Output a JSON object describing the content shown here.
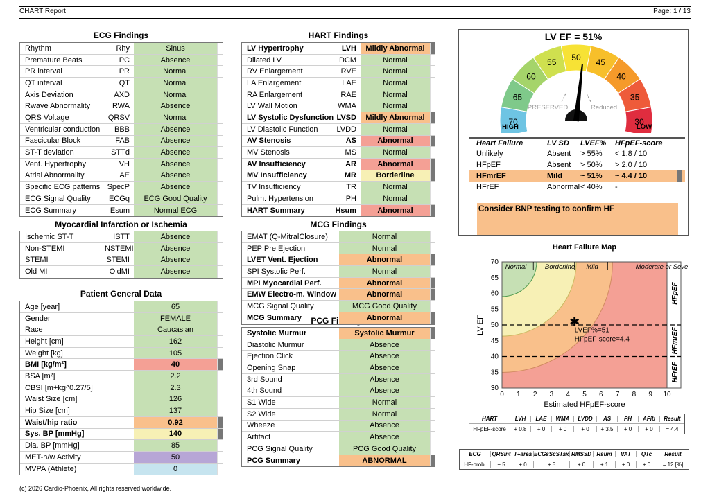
{
  "header": {
    "title": "CHART Report",
    "page": "Page: 1 / 13"
  },
  "footer": "(c) 2026 Cardio-Phoenix, All rights reserved worldwide.",
  "colors": {
    "green": "#c6e0b4",
    "orange": "#f9c08b",
    "red": "#f4a095",
    "yellow": "#f7f0b5",
    "purple": "#b7a6d6",
    "cyan": "#c6e4ef"
  },
  "ecg": {
    "title": "ECG Findings",
    "rows": [
      [
        "Rhythm",
        "Rhy",
        "Sinus",
        "g",
        0,
        0
      ],
      [
        "Premature Beats",
        "PC",
        "Absence",
        "g",
        0,
        0
      ],
      [
        "PR interval",
        "PR",
        "Normal",
        "g",
        0,
        0
      ],
      [
        "QT interval",
        "QT",
        "Normal",
        "g",
        0,
        0
      ],
      [
        "Axis Deviation",
        "AXD",
        "Normal",
        "g",
        0,
        0
      ],
      [
        "Rwave Abnormality",
        "RWA",
        "Absence",
        "g",
        0,
        0
      ],
      [
        "QRS Voltage",
        "QRSV",
        "Normal",
        "g",
        0,
        0
      ],
      [
        "Ventricular conduction",
        "BBB",
        "Absence",
        "g",
        0,
        0
      ],
      [
        "Fascicular Block",
        "FAB",
        "Absence",
        "g",
        0,
        0
      ],
      [
        "ST-T deviation",
        "STTd",
        "Absence",
        "g",
        0,
        0
      ],
      [
        "Vent. Hypertrophy",
        "VH",
        "Absence",
        "g",
        0,
        0
      ],
      [
        "Atrial Abnormality",
        "AE",
        "Absence",
        "g",
        0,
        0
      ],
      [
        "Specific ECG patterns",
        "SpecP",
        "Absence",
        "g",
        0,
        0
      ],
      [
        "ECG Signal Quality",
        "ECGq",
        "ECG Good Quality",
        "g",
        0,
        0
      ],
      [
        "ECG Summary",
        "Esum",
        "Normal ECG",
        "g",
        0,
        0
      ]
    ]
  },
  "mi": {
    "title": "Myocardial Infarction or Ischemia",
    "rows": [
      [
        "Ischemic ST-T",
        "ISTT",
        "Absence",
        "g",
        0,
        0
      ],
      [
        "Non-STEMI",
        "NSTEMI",
        "Absence",
        "g",
        0,
        0
      ],
      [
        "STEMI",
        "STEMI",
        "Absence",
        "g",
        0,
        0
      ],
      [
        "Old MI",
        "OldMI",
        "Absence",
        "g",
        0,
        0
      ]
    ]
  },
  "patient": {
    "title": "Patient General Data",
    "rows": [
      [
        "Age [year]",
        "",
        "65",
        "g",
        0,
        0
      ],
      [
        "Gender",
        "",
        "FEMALE",
        "g",
        0,
        0
      ],
      [
        "Race",
        "",
        "Caucasian",
        "g",
        0,
        0
      ],
      [
        "Height [cm]",
        "",
        "162",
        "g",
        0,
        0
      ],
      [
        "Weight [kg]",
        "",
        "105",
        "g",
        0,
        0
      ],
      [
        "BMI [kg/m²]",
        "",
        "40",
        "r",
        1,
        1
      ],
      [
        "BSA [m²]",
        "",
        "2.2",
        "g",
        0,
        0
      ],
      [
        "CBSI [m+kg^0.27/5]",
        "",
        "2.3",
        "g",
        0,
        0
      ],
      [
        "Waist Size [cm]",
        "",
        "126",
        "g",
        0,
        0
      ],
      [
        "Hip Size [cm]",
        "",
        "137",
        "g",
        0,
        0
      ],
      [
        "Waist/hip ratio",
        "",
        "0.92",
        "o",
        1,
        1
      ],
      [
        "Sys. BP [mmHg]",
        "",
        "140",
        "y",
        1,
        1
      ],
      [
        "Dia. BP [mmHg]",
        "",
        "85",
        "g",
        0,
        0
      ],
      [
        "MET-h/w Activity",
        "",
        "50",
        "p",
        0,
        0
      ],
      [
        "MVPA (Athlete)",
        "",
        "0",
        "c",
        0,
        0
      ]
    ]
  },
  "hart": {
    "title": "HART Findings",
    "rows": [
      [
        "LV Hypertrophy",
        "LVH",
        "Mildly Abnormal",
        "o",
        1,
        1
      ],
      [
        "Dilated LV",
        "DCM",
        "Normal",
        "g",
        0,
        0
      ],
      [
        "RV Enlargement",
        "RVE",
        "Normal",
        "g",
        0,
        0
      ],
      [
        "LA Enlargement",
        "LAE",
        "Normal",
        "g",
        0,
        0
      ],
      [
        "RA Enlargement",
        "RAE",
        "Normal",
        "g",
        0,
        0
      ],
      [
        "LV Wall Motion",
        "WMA",
        "Normal",
        "g",
        0,
        0
      ],
      [
        "LV Systolic Dysfunction",
        "LVSD",
        "Mildly Abnormal",
        "o",
        1,
        1
      ],
      [
        "LV Diastolic Function",
        "LVDD",
        "Normal",
        "g",
        0,
        0
      ],
      [
        "AV Stenosis",
        "AS",
        "Abnormal",
        "r",
        1,
        1
      ],
      [
        "MV Stenosis",
        "MS",
        "Normal",
        "g",
        0,
        0
      ],
      [
        "AV Insufficiency",
        "AR",
        "Abnormal",
        "r",
        1,
        1
      ],
      [
        "MV Insufficiency",
        "MR",
        "Borderline",
        "y",
        1,
        1
      ],
      [
        "TV Insufficiency",
        "TR",
        "Normal",
        "g",
        0,
        0
      ],
      [
        "Pulm. Hypertension",
        "PH",
        "Normal",
        "g",
        0,
        0
      ],
      [
        "HART Summary",
        "Hsum",
        "Abnormal",
        "r",
        1,
        1
      ]
    ]
  },
  "mcg": {
    "title": "MCG Findings",
    "rows": [
      [
        "EMAT (Q-MitralClosure)",
        "",
        "Normal",
        "g",
        0,
        0
      ],
      [
        "PEP Pre Ejection",
        "",
        "Normal",
        "g",
        0,
        0
      ],
      [
        "LVET Vent. Ejection",
        "",
        "Abnormal",
        "o",
        1,
        1
      ],
      [
        "SPI Systolic Perf.",
        "",
        "Normal",
        "g",
        0,
        0
      ],
      [
        "MPI Myocardial Perf.",
        "",
        "Abnormal",
        "o",
        1,
        1
      ],
      [
        "EMW Electro-m. Window",
        "",
        "Abnormal",
        "o",
        1,
        1
      ],
      [
        "MCG Signal Quality",
        "",
        "MCG Good Quality",
        "g",
        0,
        0
      ],
      [
        "MCG Summary",
        "",
        "Abnormal",
        "o",
        1,
        1
      ]
    ]
  },
  "pcg": {
    "title": "PCG Findings",
    "rows": [
      [
        "Systolic Murmur",
        "",
        "Systolic Murmur",
        "o",
        1,
        1
      ],
      [
        "Diastolic Murmur",
        "",
        "Absence",
        "g",
        0,
        0
      ],
      [
        "Ejection Click",
        "",
        "Absence",
        "g",
        0,
        0
      ],
      [
        "Opening Snap",
        "",
        "Absence",
        "g",
        0,
        0
      ],
      [
        "3rd Sound",
        "",
        "Absence",
        "g",
        0,
        0
      ],
      [
        "4th Sound",
        "",
        "Absence",
        "g",
        0,
        0
      ],
      [
        "S1 Wide",
        "",
        "Normal",
        "g",
        0,
        0
      ],
      [
        "S2 Wide",
        "",
        "Normal",
        "g",
        0,
        0
      ],
      [
        "Wheeze",
        "",
        "Absence",
        "g",
        0,
        0
      ],
      [
        "Artifact",
        "",
        "Absence",
        "g",
        0,
        0
      ],
      [
        "PCG Signal Quality",
        "",
        "PCG Good Quality",
        "g",
        0,
        0
      ],
      [
        "PCG Summary",
        "",
        "ABNORMAL",
        "o",
        1,
        1
      ]
    ]
  },
  "gauge": {
    "title": "LV EF = 51%",
    "value": 51,
    "ticks": [
      "70",
      "65",
      "60",
      "55",
      "50",
      "45",
      "40",
      "35",
      "30"
    ],
    "preserved": "PRESERVED",
    "reduced": "Reduced",
    "high": "HIGH",
    "low": "LOW"
  },
  "hf": {
    "headers": [
      "Heart Failure",
      "LV SD",
      "LVEF%",
      "HFpEF-score"
    ],
    "rows": [
      [
        "Unlikely",
        "Absent",
        "> 55%",
        "< 1.8 / 10",
        0
      ],
      [
        "HFpEF",
        "Absent",
        "> 50%",
        "> 2.0 / 10",
        0
      ],
      [
        "HFmrEF",
        "Mild",
        "~ 51%",
        "~ 4.4 / 10",
        1
      ],
      [
        "HFrEF",
        "Abnormal",
        "< 40%",
        "-",
        0
      ]
    ],
    "note": "Consider BNP testing to confirm HF"
  },
  "chart_data": {
    "type": "scatter",
    "title": "Heart Failure Map",
    "xlabel": "Estimated HFpEF-score",
    "ylabel": "LV EF",
    "xlim": [
      0,
      10
    ],
    "ylim": [
      30,
      70
    ],
    "xticks": [
      0,
      1,
      2,
      3,
      4,
      5,
      6,
      7,
      8,
      9,
      10
    ],
    "yticks": [
      30,
      35,
      40,
      45,
      50,
      55,
      60,
      65,
      70
    ],
    "zones": [
      "Normal",
      "Borderline",
      "Mild",
      "Moderate or Severe"
    ],
    "side_labels": [
      "HFpEF",
      "HFmrEF",
      "HFrEF"
    ],
    "thresholds": [
      50,
      40
    ],
    "point": {
      "x": 4.4,
      "y": 51,
      "label1": "LVEF%=51",
      "label2": "HFpEF-score=4.4"
    }
  },
  "hart_table": {
    "headers": [
      "HART",
      "LVH",
      "LAE",
      "WMA",
      "LVDD",
      "AS",
      "PH",
      "AFib",
      "Result"
    ],
    "values": [
      "HFpEF-score",
      "+ 0.8",
      "+ 0",
      "+ 0",
      "+ 0",
      "+ 3.5",
      "+ 0",
      "+ 0",
      "= 4.4"
    ]
  },
  "ecg_table": {
    "headers": [
      "ECG",
      "QRSint",
      "T+area",
      "ECGsScSTaxis",
      "RMSSD",
      "Rsum",
      "VAT",
      "QTc",
      "Result"
    ],
    "values": [
      "HF-prob.",
      "+ 5",
      "+ 0",
      "+ 5",
      "+ 0",
      "+ 1",
      "+ 0",
      "+ 0",
      "= 12 [%]"
    ]
  }
}
